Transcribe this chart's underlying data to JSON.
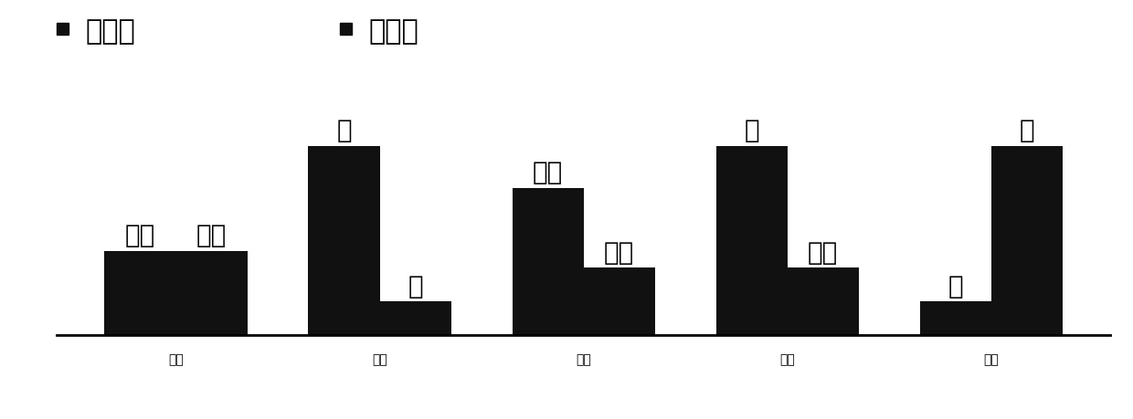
{
  "categories": [
    "峰值",
    "峢度",
    "脉冲",
    "裕度",
    "偏态"
  ],
  "sensitivity_values": [
    2.0,
    4.5,
    3.5,
    4.5,
    0.8
  ],
  "stability_values": [
    2.0,
    0.8,
    1.6,
    1.6,
    4.5
  ],
  "sensitivity_labels": [
    "一般",
    "好",
    "较好",
    "好",
    "差"
  ],
  "stability_labels": [
    "一般",
    "差",
    "一般",
    "一般",
    "好"
  ],
  "bar_color": "#111111",
  "bar_width": 0.35,
  "legend_labels": [
    "敏感性",
    "稳定性"
  ],
  "tick_fontsize": 22,
  "legend_fontsize": 22,
  "bar_label_fontsize": 20,
  "ylim": [
    0,
    5.8
  ],
  "background_color": "#ffffff"
}
